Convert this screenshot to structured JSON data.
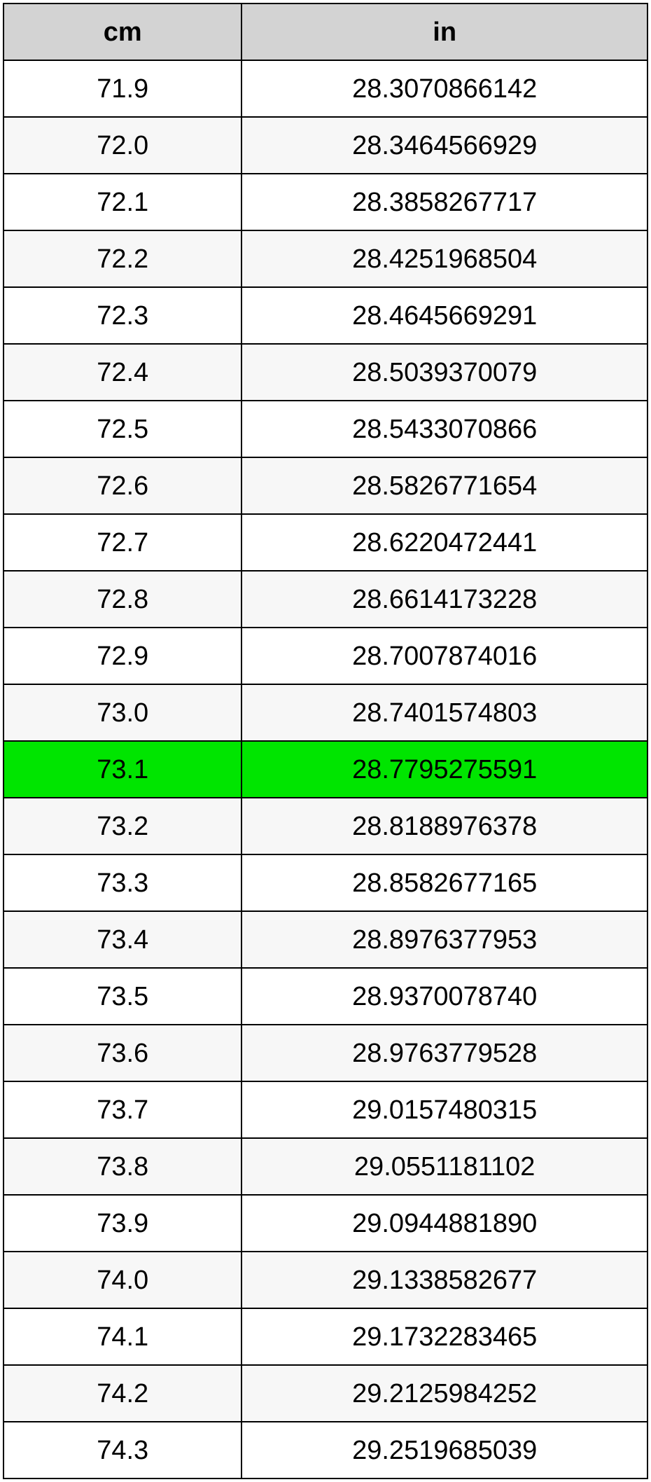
{
  "table": {
    "border_color": "#000000",
    "header_bg": "#d3d3d3",
    "row_bg_even": "#ffffff",
    "row_bg_odd": "#f7f7f7",
    "highlight_bg": "#00e500",
    "text_color": "#000000",
    "header_fontsize": 38,
    "cell_fontsize": 38,
    "col_widths_pct": [
      37,
      63
    ],
    "columns": [
      "cm",
      "in"
    ],
    "highlight_row_index": 12,
    "rows": [
      [
        "71.9",
        "28.3070866142"
      ],
      [
        "72.0",
        "28.3464566929"
      ],
      [
        "72.1",
        "28.3858267717"
      ],
      [
        "72.2",
        "28.4251968504"
      ],
      [
        "72.3",
        "28.4645669291"
      ],
      [
        "72.4",
        "28.5039370079"
      ],
      [
        "72.5",
        "28.5433070866"
      ],
      [
        "72.6",
        "28.5826771654"
      ],
      [
        "72.7",
        "28.6220472441"
      ],
      [
        "72.8",
        "28.6614173228"
      ],
      [
        "72.9",
        "28.7007874016"
      ],
      [
        "73.0",
        "28.7401574803"
      ],
      [
        "73.1",
        "28.7795275591"
      ],
      [
        "73.2",
        "28.8188976378"
      ],
      [
        "73.3",
        "28.8582677165"
      ],
      [
        "73.4",
        "28.8976377953"
      ],
      [
        "73.5",
        "28.9370078740"
      ],
      [
        "73.6",
        "28.9763779528"
      ],
      [
        "73.7",
        "29.0157480315"
      ],
      [
        "73.8",
        "29.0551181102"
      ],
      [
        "73.9",
        "29.0944881890"
      ],
      [
        "74.0",
        "29.1338582677"
      ],
      [
        "74.1",
        "29.1732283465"
      ],
      [
        "74.2",
        "29.2125984252"
      ],
      [
        "74.3",
        "29.2519685039"
      ]
    ]
  }
}
